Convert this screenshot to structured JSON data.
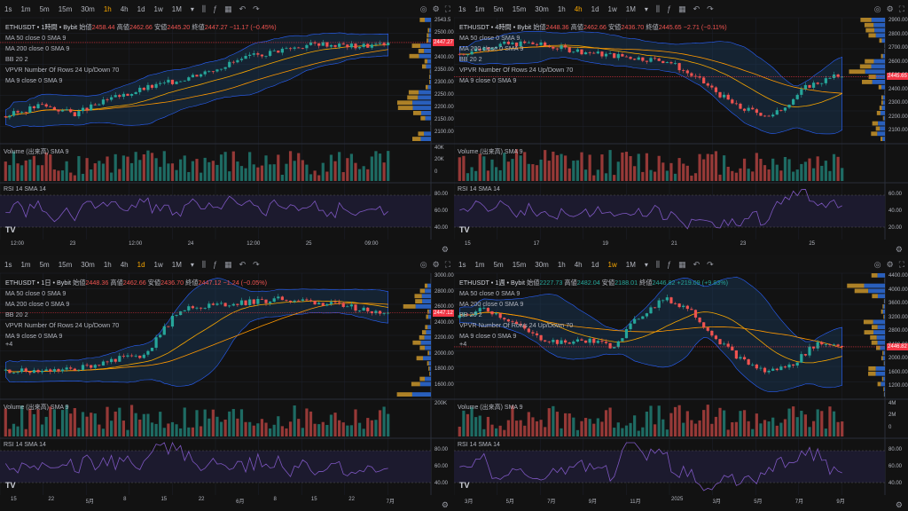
{
  "toolbar_icons": [
    "candle-icon",
    "indicator-icon",
    "template-icon",
    "undo-icon",
    "redo-icon"
  ],
  "toolbar_right_icons": [
    "camera-icon",
    "settings-icon",
    "fullscreen-icon"
  ],
  "panels": [
    {
      "timeframes": [
        "1s",
        "1m",
        "5m",
        "15m",
        "30m",
        "1h",
        "4h",
        "1d",
        "1w",
        "1M"
      ],
      "active_tf": "1h",
      "dropdown": "▾",
      "symbol_line": "ETHUSDT • 1時間 • Bybit",
      "ohlc": {
        "o_label": "始値",
        "o": "2458.44",
        "h_label": "高値",
        "h": "2462.66",
        "l_label": "安値",
        "l": "2445.20",
        "c_label": "終値",
        "c": "2447.27",
        "chg": "−11.17 (−0.45%)",
        "dir": "dn"
      },
      "indicators": [
        "MA 50 close 0 SMA 9",
        "MA 200 close 0 SMA 9",
        "BB 20 2",
        "VPVR Number Of Rows 24 Up/Down 70",
        "MA 9 close 0 SMA 9"
      ],
      "price_axis": [
        "2543.5",
        "2500.00",
        "2450.00",
        "2400.00",
        "2350.00",
        "2300.00",
        "2250.00",
        "2200.00",
        "2150.00",
        "2100.00"
      ],
      "last_price": "2447.27",
      "vol_label": "Volume (出来高) SMA 9",
      "vol_axis": [
        "40K",
        "20K",
        "0"
      ],
      "rsi_label": "RSI 14 SMA 14",
      "rsi_axis": [
        "80.00",
        "60.00",
        "40.00"
      ],
      "x_axis": [
        "12:00",
        "23",
        "12:00",
        "24",
        "12:00",
        "25",
        "09:00"
      ],
      "series": {
        "seed": 3,
        "trend": [
          2190,
          2230,
          2200,
          2250,
          2290,
          2320,
          2360,
          2400,
          2430,
          2450,
          2440,
          2447
        ],
        "colors": {
          "up": "#26a69a",
          "dn": "#ef5350"
        }
      }
    },
    {
      "timeframes": [
        "1s",
        "1m",
        "5m",
        "15m",
        "30m",
        "1h",
        "4h",
        "1d",
        "1w",
        "1M"
      ],
      "active_tf": "4h",
      "dropdown": "▾",
      "symbol_line": "ETHUSDT • 4時間 • Bybit",
      "ohlc": {
        "o_label": "始値",
        "o": "2448.36",
        "h_label": "高値",
        "h": "2462.66",
        "l_label": "安値",
        "l": "2436.70",
        "c_label": "終値",
        "c": "2445.65",
        "chg": "−2.71 (−0.11%)",
        "dir": "dn"
      },
      "indicators": [
        "MA 50 close 0 SMA 9",
        "MA 200 close 0 SMA 9",
        "BB 20 2",
        "VPVR Number Of Rows 24 Up/Down 70",
        "MA 9 close 0 SMA 9"
      ],
      "price_axis": [
        "2900.00",
        "2800.00",
        "2700.00",
        "2600.00",
        "2500.00",
        "2400.00",
        "2300.00",
        "2200.00",
        "2100.00"
      ],
      "last_price": "2445.65",
      "vol_label": "Volume (出来高) SMA 9",
      "vol_axis": [],
      "rsi_label": "RSI 14 SMA 14",
      "rsi_axis": [
        "60.00",
        "40.00",
        "20.00"
      ],
      "x_axis": [
        "15",
        "17",
        "19",
        "21",
        "23",
        "25"
      ],
      "series": {
        "seed": 7,
        "trend": [
          2560,
          2610,
          2620,
          2590,
          2560,
          2540,
          2520,
          2400,
          2260,
          2210,
          2380,
          2445
        ],
        "colors": {
          "up": "#26a69a",
          "dn": "#ef5350"
        }
      }
    },
    {
      "timeframes": [
        "1s",
        "1m",
        "5m",
        "15m",
        "30m",
        "1h",
        "4h",
        "1d",
        "1w",
        "1M"
      ],
      "active_tf": "1d",
      "dropdown": "▾",
      "symbol_line": "ETHUSDT • 1日 • Bybit",
      "ohlc": {
        "o_label": "始値",
        "o": "2448.36",
        "h_label": "高値",
        "h": "2462.66",
        "l_label": "安値",
        "l": "2436.70",
        "c_label": "終値",
        "c": "2447.12",
        "chg": "−1.24 (−0.05%)",
        "dir": "dn"
      },
      "indicators": [
        "MA 50 close 0 SMA 9",
        "MA 200 close 0 SMA 9",
        "BB 20 2",
        "VPVR Number Of Rows 24 Up/Down 70",
        "MA 9 close 0 SMA 9"
      ],
      "collapse": "+4",
      "price_axis": [
        "3000.00",
        "2800.00",
        "2600.00",
        "2400.00",
        "2200.00",
        "2000.00",
        "1800.00",
        "1600.00"
      ],
      "last_price": "2447.12",
      "vol_label": "Volume (出来高) SMA 9",
      "vol_axis": [
        "200K"
      ],
      "rsi_label": "RSI 14 SMA 14",
      "rsi_axis": [
        "80.00",
        "60.00",
        "40.00"
      ],
      "x_axis": [
        "15",
        "22",
        "5月",
        "8",
        "15",
        "22",
        "6月",
        "8",
        "15",
        "22",
        "7月"
      ],
      "series": {
        "seed": 11,
        "trend": [
          1600,
          1580,
          1620,
          1750,
          1830,
          2500,
          2560,
          2600,
          2650,
          2600,
          2520,
          2447
        ],
        "colors": {
          "up": "#26a69a",
          "dn": "#ef5350"
        }
      }
    },
    {
      "timeframes": [
        "1s",
        "1m",
        "5m",
        "15m",
        "30m",
        "1h",
        "4h",
        "1d",
        "1w",
        "1M"
      ],
      "active_tf": "1w",
      "dropdown": "▾",
      "symbol_line": "ETHUSDT • 1週 • Bybit",
      "ohlc": {
        "o_label": "始値",
        "o": "2227.73",
        "h_label": "高値",
        "h": "2482.04",
        "l_label": "安値",
        "l": "2188.01",
        "c_label": "終値",
        "c": "2446.82",
        "chg": "+219.09 (+9.83%)",
        "dir": "up"
      },
      "indicators": [
        "MA 50 close 0 SMA 9",
        "MA 200 close 0 SMA 9",
        "BB 20 2",
        "VPVR Number Of Rows 24 Up/Down 70",
        "MA 9 close 0 SMA 9"
      ],
      "collapse": "+4",
      "price_axis": [
        "4400.00",
        "4000.00",
        "3600.00",
        "3200.00",
        "2800.00",
        "2400.00",
        "2000.00",
        "1600.00",
        "1200.00"
      ],
      "last_price": "2446.82",
      "vol_label": "Volume (出来高) SMA 9",
      "vol_axis": [
        "4M",
        "2M",
        "0"
      ],
      "rsi_label": "RSI 14 SMA 14",
      "rsi_axis": [
        "80.00",
        "60.00",
        "40.00"
      ],
      "x_axis": [
        "3月",
        "5月",
        "7月",
        "9月",
        "11月",
        "2025",
        "3月",
        "5月",
        "7月",
        "9月"
      ],
      "series": {
        "seed": 19,
        "trend": [
          3300,
          3600,
          3200,
          2700,
          2500,
          2600,
          2400,
          3300,
          3900,
          3600,
          2700,
          2000,
          1600,
          1800,
          2500,
          2447
        ],
        "colors": {
          "up": "#26a69a",
          "dn": "#ef5350"
        }
      }
    }
  ],
  "logo_text": "TV",
  "colors": {
    "bg": "#121212",
    "grid": "#1e222d",
    "up": "#26a69a",
    "dn": "#ef5350",
    "bb_fill": "#1a3a5c",
    "bb_line": "#2962ff",
    "ma50": "#f7a600",
    "ma200": "#ff9800",
    "vpvr_up": "#c9952b",
    "vpvr_dn": "#3179f5",
    "rsi": "#7e57c2",
    "rsi_bg": "#1c1a2e",
    "last_line": "#f23645",
    "active_tf": "#f7a600"
  }
}
